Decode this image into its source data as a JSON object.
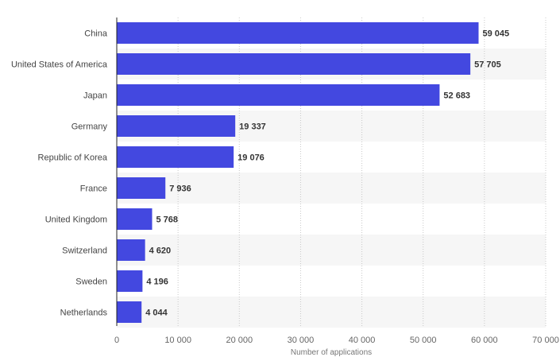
{
  "chart_data": {
    "type": "bar",
    "orientation": "horizontal",
    "categories": [
      "China",
      "United States of America",
      "Japan",
      "Germany",
      "Republic of Korea",
      "France",
      "United Kingdom",
      "Switzerland",
      "Sweden",
      "Netherlands"
    ],
    "values": [
      59045,
      57705,
      52683,
      19337,
      19076,
      7936,
      5768,
      4620,
      4196,
      4044
    ],
    "value_labels": [
      "59 045",
      "57 705",
      "52 683",
      "19 337",
      "19 076",
      "7 936",
      "5 768",
      "4 620",
      "4 196",
      "4 044"
    ],
    "x_ticks": [
      0,
      10000,
      20000,
      30000,
      40000,
      50000,
      60000,
      70000
    ],
    "x_tick_labels": [
      "0",
      "10 000",
      "20 000",
      "30 000",
      "40 000",
      "50 000",
      "60 000",
      "70 000"
    ],
    "xlim": [
      0,
      70000
    ],
    "xlabel": "Number of applications",
    "ylabel": "",
    "title": "",
    "grid": "vertical dotted",
    "bar_color": "#4348e0",
    "band_color": "#f6f6f6"
  }
}
